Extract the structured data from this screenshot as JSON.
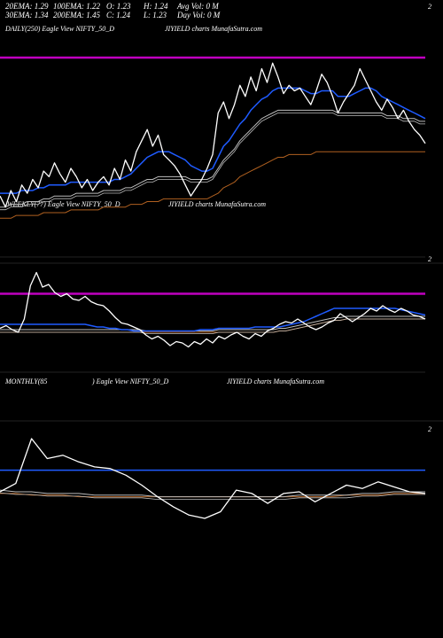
{
  "header": {
    "ema20": "20EMA: 1.29",
    "ema100": "100EMA: 1.22",
    "open": "O: 1.23",
    "high": "H: 1.24",
    "avgvol": "Avg Vol: 0  M",
    "ema30": "30EMA: 1.34",
    "ema200": "200EMA: 1.45",
    "close": "C: 1.24",
    "low": "L: 1.23",
    "dayvol": "Day Vol: 0  M"
  },
  "panels": {
    "daily": {
      "label": "DAILY(250) Eagle  View  NIFTY_50_D",
      "source": "JIYIELD charts MunafaSutra.com",
      "tick": "2"
    },
    "weekly": {
      "label": "WEEKLY(77) Eagle  View  NIFTY_50_D",
      "source": "JIYIELD charts MunafaSutra.com",
      "tick": "2"
    },
    "monthly": {
      "label": "MONTHLY(85",
      "label2": ") Eagle  View  NIFTY_50_D",
      "source": "JIYIELD charts MunafaSutra.com",
      "tick": "2"
    }
  },
  "colors": {
    "price": "#ffffff",
    "ema_blue": "#1f5bff",
    "ema_magenta": "#c000c0",
    "ema_grey": "#bbbbbb",
    "ema_brown": "#b06020",
    "frame": "#444444"
  },
  "chart_data": [
    {
      "type": "line",
      "name": "daily",
      "ylim": [
        0.9,
        1.7
      ],
      "series": [
        {
          "name": "price",
          "values": [
            1.12,
            1.08,
            1.14,
            1.1,
            1.16,
            1.13,
            1.18,
            1.15,
            1.21,
            1.19,
            1.24,
            1.2,
            1.17,
            1.22,
            1.19,
            1.15,
            1.18,
            1.14,
            1.17,
            1.19,
            1.16,
            1.22,
            1.18,
            1.25,
            1.21,
            1.28,
            1.32,
            1.36,
            1.3,
            1.34,
            1.27,
            1.25,
            1.23,
            1.2,
            1.16,
            1.12,
            1.15,
            1.18,
            1.22,
            1.27,
            1.42,
            1.46,
            1.4,
            1.45,
            1.52,
            1.48,
            1.55,
            1.5,
            1.58,
            1.53,
            1.6,
            1.55,
            1.49,
            1.52,
            1.5,
            1.51,
            1.48,
            1.45,
            1.5,
            1.56,
            1.53,
            1.48,
            1.42,
            1.46,
            1.49,
            1.52,
            1.58,
            1.54,
            1.5,
            1.46,
            1.43,
            1.47,
            1.44,
            1.4,
            1.43,
            1.39,
            1.36,
            1.34,
            1.31
          ]
        },
        {
          "name": "EMA blue",
          "values": [
            1.13,
            1.13,
            1.13,
            1.13,
            1.14,
            1.14,
            1.14,
            1.15,
            1.15,
            1.16,
            1.16,
            1.16,
            1.16,
            1.17,
            1.17,
            1.17,
            1.17,
            1.17,
            1.17,
            1.17,
            1.17,
            1.18,
            1.18,
            1.19,
            1.2,
            1.22,
            1.24,
            1.26,
            1.27,
            1.28,
            1.28,
            1.28,
            1.27,
            1.26,
            1.25,
            1.23,
            1.22,
            1.21,
            1.21,
            1.22,
            1.26,
            1.3,
            1.32,
            1.35,
            1.38,
            1.4,
            1.43,
            1.45,
            1.47,
            1.48,
            1.5,
            1.51,
            1.51,
            1.51,
            1.51,
            1.51,
            1.5,
            1.49,
            1.49,
            1.5,
            1.5,
            1.5,
            1.48,
            1.48,
            1.48,
            1.49,
            1.5,
            1.51,
            1.51,
            1.5,
            1.48,
            1.47,
            1.46,
            1.45,
            1.44,
            1.43,
            1.42,
            1.41,
            1.4
          ]
        },
        {
          "name": "EMA grey",
          "values": [
            1.08,
            1.08,
            1.09,
            1.09,
            1.09,
            1.1,
            1.1,
            1.1,
            1.11,
            1.11,
            1.12,
            1.12,
            1.12,
            1.12,
            1.13,
            1.13,
            1.13,
            1.13,
            1.13,
            1.14,
            1.14,
            1.14,
            1.14,
            1.15,
            1.15,
            1.16,
            1.17,
            1.18,
            1.18,
            1.19,
            1.19,
            1.19,
            1.19,
            1.19,
            1.19,
            1.18,
            1.18,
            1.18,
            1.18,
            1.19,
            1.22,
            1.25,
            1.27,
            1.29,
            1.32,
            1.34,
            1.36,
            1.38,
            1.4,
            1.41,
            1.42,
            1.43,
            1.43,
            1.43,
            1.43,
            1.43,
            1.43,
            1.43,
            1.43,
            1.43,
            1.43,
            1.43,
            1.42,
            1.42,
            1.42,
            1.42,
            1.42,
            1.42,
            1.42,
            1.42,
            1.42,
            1.41,
            1.41,
            1.41,
            1.4,
            1.4,
            1.4,
            1.39,
            1.39
          ]
        },
        {
          "name": "EMA brown",
          "values": [
            1.04,
            1.04,
            1.04,
            1.05,
            1.05,
            1.05,
            1.05,
            1.05,
            1.06,
            1.06,
            1.06,
            1.06,
            1.06,
            1.07,
            1.07,
            1.07,
            1.07,
            1.07,
            1.07,
            1.08,
            1.08,
            1.08,
            1.08,
            1.08,
            1.09,
            1.09,
            1.09,
            1.1,
            1.1,
            1.1,
            1.11,
            1.11,
            1.11,
            1.11,
            1.11,
            1.11,
            1.11,
            1.11,
            1.11,
            1.12,
            1.13,
            1.15,
            1.16,
            1.17,
            1.19,
            1.2,
            1.21,
            1.22,
            1.23,
            1.24,
            1.25,
            1.26,
            1.26,
            1.27,
            1.27,
            1.27,
            1.27,
            1.27,
            1.28,
            1.28,
            1.28,
            1.28,
            1.28,
            1.28,
            1.28,
            1.28,
            1.28,
            1.28,
            1.28,
            1.28,
            1.28,
            1.28,
            1.28,
            1.28,
            1.28,
            1.28,
            1.28,
            1.28,
            1.28
          ]
        },
        {
          "name": "EMA magenta",
          "values": [
            1.62,
            1.62
          ]
        }
      ]
    },
    {
      "type": "line",
      "name": "weekly",
      "ylim": [
        0.9,
        1.7
      ],
      "series": [
        {
          "name": "price",
          "values": [
            1.23,
            1.25,
            1.22,
            1.2,
            1.3,
            1.55,
            1.65,
            1.54,
            1.56,
            1.5,
            1.47,
            1.49,
            1.45,
            1.44,
            1.47,
            1.43,
            1.41,
            1.4,
            1.36,
            1.31,
            1.27,
            1.26,
            1.24,
            1.22,
            1.18,
            1.15,
            1.17,
            1.14,
            1.1,
            1.13,
            1.12,
            1.09,
            1.13,
            1.11,
            1.15,
            1.12,
            1.17,
            1.15,
            1.18,
            1.2,
            1.17,
            1.15,
            1.19,
            1.17,
            1.21,
            1.23,
            1.26,
            1.28,
            1.27,
            1.3,
            1.27,
            1.24,
            1.22,
            1.24,
            1.27,
            1.29,
            1.34,
            1.31,
            1.28,
            1.31,
            1.34,
            1.38,
            1.36,
            1.4,
            1.37,
            1.35,
            1.38,
            1.36,
            1.33,
            1.32,
            1.3
          ]
        },
        {
          "name": "EMA blue",
          "values": [
            1.26,
            1.26,
            1.26,
            1.26,
            1.26,
            1.26,
            1.26,
            1.26,
            1.26,
            1.26,
            1.26,
            1.26,
            1.26,
            1.26,
            1.26,
            1.25,
            1.24,
            1.24,
            1.23,
            1.23,
            1.22,
            1.22,
            1.21,
            1.21,
            1.21,
            1.21,
            1.21,
            1.21,
            1.21,
            1.21,
            1.21,
            1.21,
            1.21,
            1.22,
            1.22,
            1.22,
            1.23,
            1.23,
            1.23,
            1.23,
            1.23,
            1.23,
            1.24,
            1.24,
            1.24,
            1.24,
            1.24,
            1.25,
            1.26,
            1.27,
            1.28,
            1.3,
            1.32,
            1.34,
            1.36,
            1.38,
            1.38,
            1.38,
            1.38,
            1.38,
            1.38,
            1.38,
            1.38,
            1.38,
            1.38,
            1.38,
            1.37,
            1.36,
            1.35,
            1.34,
            1.33
          ]
        },
        {
          "name": "EMA grey",
          "values": [
            1.22,
            1.22,
            1.22,
            1.22,
            1.22,
            1.22,
            1.22,
            1.22,
            1.22,
            1.22,
            1.22,
            1.22,
            1.22,
            1.22,
            1.22,
            1.22,
            1.22,
            1.22,
            1.22,
            1.22,
            1.22,
            1.22,
            1.22,
            1.22,
            1.21,
            1.21,
            1.21,
            1.21,
            1.21,
            1.21,
            1.21,
            1.21,
            1.21,
            1.21,
            1.21,
            1.21,
            1.22,
            1.22,
            1.22,
            1.22,
            1.22,
            1.22,
            1.22,
            1.22,
            1.22,
            1.22,
            1.23,
            1.23,
            1.24,
            1.25,
            1.26,
            1.27,
            1.28,
            1.29,
            1.3,
            1.31,
            1.31,
            1.32,
            1.32,
            1.32,
            1.32,
            1.32,
            1.32,
            1.32,
            1.32,
            1.32,
            1.32,
            1.32,
            1.32,
            1.32,
            1.32
          ]
        },
        {
          "name": "EMA brown",
          "values": [
            1.2,
            1.2,
            1.2,
            1.2,
            1.2,
            1.2,
            1.2,
            1.2,
            1.2,
            1.2,
            1.2,
            1.2,
            1.2,
            1.2,
            1.2,
            1.2,
            1.2,
            1.2,
            1.2,
            1.2,
            1.2,
            1.2,
            1.2,
            1.2,
            1.2,
            1.2,
            1.2,
            1.2,
            1.2,
            1.2,
            1.2,
            1.2,
            1.2,
            1.2,
            1.2,
            1.2,
            1.2,
            1.2,
            1.2,
            1.2,
            1.2,
            1.2,
            1.2,
            1.2,
            1.2,
            1.2,
            1.21,
            1.21,
            1.22,
            1.23,
            1.24,
            1.25,
            1.26,
            1.27,
            1.28,
            1.29,
            1.29,
            1.3,
            1.3,
            1.3,
            1.3,
            1.3,
            1.3,
            1.3,
            1.3,
            1.3,
            1.3,
            1.3,
            1.3,
            1.3,
            1.3
          ]
        },
        {
          "name": "EMA magenta",
          "values": [
            1.49,
            1.49
          ]
        }
      ]
    },
    {
      "type": "line",
      "name": "monthly",
      "ylim": [
        0.9,
        1.7
      ],
      "series": [
        {
          "name": "price",
          "values": [
            1.3,
            1.35,
            1.62,
            1.5,
            1.52,
            1.48,
            1.45,
            1.44,
            1.4,
            1.34,
            1.27,
            1.21,
            1.16,
            1.14,
            1.18,
            1.31,
            1.29,
            1.23,
            1.29,
            1.3,
            1.24,
            1.29,
            1.34,
            1.32,
            1.36,
            1.33,
            1.3,
            1.29
          ]
        },
        {
          "name": "EMA blue",
          "values": [
            1.43,
            1.43
          ]
        },
        {
          "name": "EMA grey",
          "values": [
            1.31,
            1.3,
            1.3,
            1.29,
            1.29,
            1.29,
            1.28,
            1.28,
            1.28,
            1.28,
            1.27,
            1.27,
            1.27,
            1.27,
            1.27,
            1.27,
            1.27,
            1.27,
            1.27,
            1.28,
            1.28,
            1.28,
            1.28,
            1.29,
            1.29,
            1.3,
            1.3,
            1.3
          ]
        },
        {
          "name": "EMA brown",
          "values": [
            1.29,
            1.29,
            1.28,
            1.28,
            1.28,
            1.27,
            1.27,
            1.27,
            1.27,
            1.27,
            1.27,
            1.27,
            1.27,
            1.27,
            1.27,
            1.27,
            1.27,
            1.27,
            1.27,
            1.27,
            1.27,
            1.27,
            1.28,
            1.28,
            1.28,
            1.29,
            1.29,
            1.29
          ]
        }
      ]
    }
  ]
}
